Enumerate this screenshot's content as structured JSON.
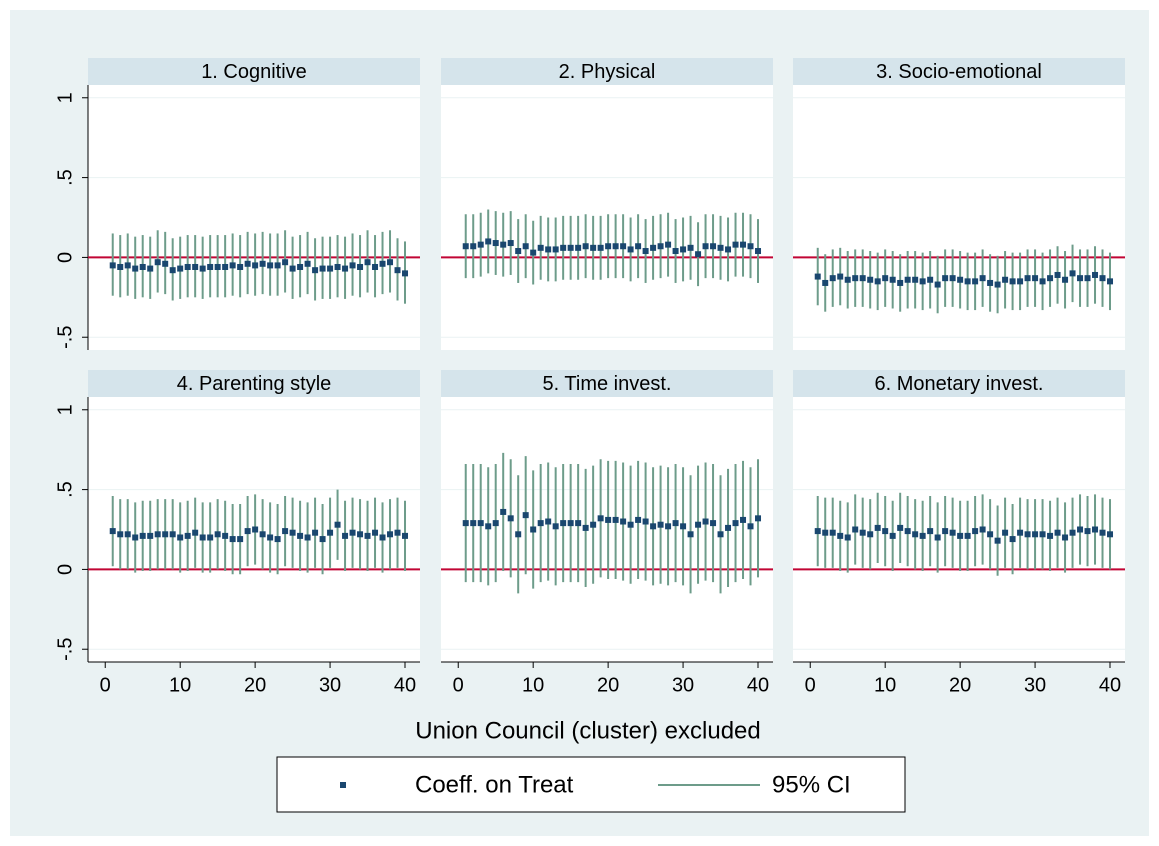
{
  "chart_data": {
    "type": "errorbar",
    "xlabel": "Union Council (cluster) excluded",
    "x": [
      1,
      2,
      3,
      4,
      5,
      6,
      7,
      8,
      9,
      10,
      11,
      12,
      13,
      14,
      15,
      16,
      17,
      18,
      19,
      20,
      21,
      22,
      23,
      24,
      25,
      26,
      27,
      28,
      29,
      30,
      31,
      32,
      33,
      34,
      35,
      36,
      37,
      38,
      39,
      40
    ],
    "xlim": [
      -2.3,
      42
    ],
    "xticks": [
      0,
      10,
      20,
      30,
      40
    ],
    "ylim": [
      -0.58,
      1.08
    ],
    "yticks": [
      {
        "value": -0.5,
        "label": "-.5"
      },
      0,
      {
        "value": 0.5,
        "label": ".5"
      },
      1
    ],
    "grid": true,
    "reference_line": 0,
    "reference_color": "#c10534",
    "series": [
      {
        "name": "Coeff. on Treat",
        "color": "#1a476f"
      },
      {
        "name": "95% CI",
        "color": "#6d9c8a"
      }
    ],
    "panels": [
      {
        "title": "1. Cognitive",
        "values": [
          -0.05,
          -0.06,
          -0.05,
          -0.07,
          -0.06,
          -0.07,
          -0.03,
          -0.04,
          -0.08,
          -0.07,
          -0.06,
          -0.06,
          -0.07,
          -0.06,
          -0.06,
          -0.06,
          -0.05,
          -0.06,
          -0.04,
          -0.05,
          -0.04,
          -0.05,
          -0.05,
          -0.03,
          -0.07,
          -0.06,
          -0.04,
          -0.08,
          -0.07,
          -0.07,
          -0.06,
          -0.07,
          -0.05,
          -0.06,
          -0.03,
          -0.06,
          -0.04,
          -0.03,
          -0.08,
          -0.1
        ],
        "lower": [
          -0.24,
          -0.25,
          -0.24,
          -0.26,
          -0.25,
          -0.26,
          -0.22,
          -0.23,
          -0.27,
          -0.26,
          -0.25,
          -0.25,
          -0.26,
          -0.25,
          -0.25,
          -0.25,
          -0.24,
          -0.25,
          -0.23,
          -0.24,
          -0.23,
          -0.24,
          -0.24,
          -0.22,
          -0.26,
          -0.25,
          -0.23,
          -0.27,
          -0.26,
          -0.26,
          -0.25,
          -0.26,
          -0.24,
          -0.25,
          -0.22,
          -0.25,
          -0.23,
          -0.22,
          -0.27,
          -0.29
        ],
        "upper": [
          0.15,
          0.14,
          0.15,
          0.13,
          0.14,
          0.13,
          0.17,
          0.16,
          0.12,
          0.13,
          0.14,
          0.14,
          0.13,
          0.14,
          0.14,
          0.14,
          0.15,
          0.14,
          0.16,
          0.15,
          0.16,
          0.15,
          0.15,
          0.17,
          0.13,
          0.14,
          0.16,
          0.12,
          0.13,
          0.13,
          0.14,
          0.13,
          0.15,
          0.14,
          0.17,
          0.14,
          0.16,
          0.17,
          0.12,
          0.1
        ]
      },
      {
        "title": "2. Physical",
        "values": [
          0.07,
          0.07,
          0.08,
          0.1,
          0.09,
          0.08,
          0.09,
          0.04,
          0.07,
          0.03,
          0.06,
          0.05,
          0.05,
          0.06,
          0.06,
          0.06,
          0.07,
          0.06,
          0.06,
          0.07,
          0.07,
          0.07,
          0.05,
          0.07,
          0.04,
          0.06,
          0.07,
          0.08,
          0.04,
          0.05,
          0.06,
          0.02,
          0.07,
          0.07,
          0.06,
          0.05,
          0.08,
          0.08,
          0.07,
          0.04
        ],
        "lower": [
          -0.13,
          -0.13,
          -0.12,
          -0.1,
          -0.11,
          -0.12,
          -0.11,
          -0.16,
          -0.13,
          -0.17,
          -0.14,
          -0.15,
          -0.15,
          -0.14,
          -0.14,
          -0.14,
          -0.13,
          -0.14,
          -0.14,
          -0.13,
          -0.13,
          -0.13,
          -0.15,
          -0.13,
          -0.16,
          -0.14,
          -0.13,
          -0.12,
          -0.16,
          -0.15,
          -0.14,
          -0.18,
          -0.13,
          -0.13,
          -0.14,
          -0.15,
          -0.12,
          -0.12,
          -0.13,
          -0.16
        ],
        "upper": [
          0.27,
          0.27,
          0.28,
          0.3,
          0.29,
          0.28,
          0.29,
          0.24,
          0.27,
          0.23,
          0.26,
          0.25,
          0.25,
          0.26,
          0.26,
          0.26,
          0.27,
          0.26,
          0.26,
          0.27,
          0.27,
          0.27,
          0.25,
          0.27,
          0.24,
          0.26,
          0.27,
          0.28,
          0.24,
          0.25,
          0.26,
          0.22,
          0.27,
          0.27,
          0.26,
          0.25,
          0.28,
          0.28,
          0.27,
          0.24
        ]
      },
      {
        "title": "3. Socio-emotional",
        "values": [
          -0.12,
          -0.16,
          -0.13,
          -0.12,
          -0.14,
          -0.13,
          -0.13,
          -0.14,
          -0.15,
          -0.13,
          -0.14,
          -0.16,
          -0.14,
          -0.14,
          -0.15,
          -0.14,
          -0.17,
          -0.13,
          -0.13,
          -0.14,
          -0.15,
          -0.15,
          -0.13,
          -0.16,
          -0.17,
          -0.14,
          -0.15,
          -0.15,
          -0.13,
          -0.13,
          -0.15,
          -0.13,
          -0.11,
          -0.14,
          -0.1,
          -0.13,
          -0.13,
          -0.11,
          -0.13,
          -0.15
        ],
        "lower": [
          -0.3,
          -0.34,
          -0.31,
          -0.3,
          -0.32,
          -0.31,
          -0.31,
          -0.32,
          -0.33,
          -0.31,
          -0.32,
          -0.34,
          -0.32,
          -0.32,
          -0.33,
          -0.32,
          -0.35,
          -0.31,
          -0.31,
          -0.32,
          -0.33,
          -0.33,
          -0.31,
          -0.34,
          -0.35,
          -0.32,
          -0.33,
          -0.33,
          -0.31,
          -0.31,
          -0.33,
          -0.31,
          -0.29,
          -0.32,
          -0.28,
          -0.31,
          -0.31,
          -0.29,
          -0.31,
          -0.33
        ],
        "upper": [
          0.06,
          0.02,
          0.05,
          0.06,
          0.04,
          0.05,
          0.05,
          0.04,
          0.03,
          0.05,
          0.04,
          0.02,
          0.04,
          0.04,
          0.03,
          0.04,
          0.01,
          0.05,
          0.05,
          0.04,
          0.03,
          0.03,
          0.05,
          0.02,
          0.01,
          0.04,
          0.03,
          0.03,
          0.05,
          0.05,
          0.03,
          0.05,
          0.07,
          0.04,
          0.08,
          0.05,
          0.05,
          0.07,
          0.05,
          0.03
        ]
      },
      {
        "title": "4. Parenting style",
        "values": [
          0.24,
          0.22,
          0.22,
          0.2,
          0.21,
          0.21,
          0.22,
          0.22,
          0.22,
          0.2,
          0.21,
          0.23,
          0.2,
          0.2,
          0.22,
          0.21,
          0.19,
          0.19,
          0.24,
          0.25,
          0.22,
          0.2,
          0.19,
          0.24,
          0.23,
          0.21,
          0.2,
          0.23,
          0.19,
          0.23,
          0.28,
          0.21,
          0.23,
          0.22,
          0.21,
          0.23,
          0.2,
          0.22,
          0.23,
          0.21
        ],
        "lower": [
          0.02,
          0,
          0,
          -0.02,
          -0.01,
          -0.01,
          0,
          0,
          0,
          -0.02,
          -0.01,
          0.01,
          -0.02,
          -0.02,
          0,
          -0.01,
          -0.03,
          -0.03,
          0.02,
          0.03,
          0,
          -0.02,
          -0.03,
          0.02,
          0.01,
          -0.01,
          -0.02,
          0.01,
          -0.03,
          0.01,
          0.06,
          -0.01,
          0.01,
          0,
          -0.01,
          0.01,
          -0.02,
          0,
          0.01,
          -0.01
        ],
        "upper": [
          0.46,
          0.44,
          0.44,
          0.42,
          0.43,
          0.43,
          0.44,
          0.44,
          0.44,
          0.42,
          0.43,
          0.45,
          0.42,
          0.42,
          0.44,
          0.43,
          0.41,
          0.41,
          0.46,
          0.47,
          0.44,
          0.42,
          0.41,
          0.46,
          0.45,
          0.43,
          0.42,
          0.45,
          0.41,
          0.45,
          0.5,
          0.43,
          0.45,
          0.44,
          0.43,
          0.45,
          0.42,
          0.44,
          0.45,
          0.43
        ]
      },
      {
        "title": "5. Time invest.",
        "values": [
          0.29,
          0.29,
          0.29,
          0.27,
          0.29,
          0.36,
          0.32,
          0.22,
          0.34,
          0.25,
          0.29,
          0.3,
          0.27,
          0.29,
          0.29,
          0.29,
          0.26,
          0.28,
          0.32,
          0.31,
          0.31,
          0.3,
          0.28,
          0.31,
          0.3,
          0.27,
          0.28,
          0.27,
          0.29,
          0.27,
          0.22,
          0.28,
          0.3,
          0.29,
          0.22,
          0.26,
          0.29,
          0.31,
          0.27,
          0.32
        ],
        "lower": [
          -0.08,
          -0.08,
          -0.08,
          -0.1,
          -0.08,
          -0.01,
          -0.05,
          -0.15,
          -0.03,
          -0.12,
          -0.08,
          -0.07,
          -0.1,
          -0.08,
          -0.08,
          -0.08,
          -0.11,
          -0.09,
          -0.05,
          -0.06,
          -0.06,
          -0.07,
          -0.09,
          -0.06,
          -0.07,
          -0.1,
          -0.09,
          -0.1,
          -0.08,
          -0.1,
          -0.15,
          -0.09,
          -0.07,
          -0.08,
          -0.15,
          -0.11,
          -0.08,
          -0.06,
          -0.1,
          -0.05
        ],
        "upper": [
          0.66,
          0.66,
          0.66,
          0.64,
          0.66,
          0.73,
          0.69,
          0.59,
          0.71,
          0.62,
          0.66,
          0.67,
          0.64,
          0.66,
          0.66,
          0.66,
          0.63,
          0.65,
          0.69,
          0.68,
          0.68,
          0.67,
          0.65,
          0.68,
          0.67,
          0.64,
          0.65,
          0.64,
          0.66,
          0.64,
          0.59,
          0.65,
          0.67,
          0.66,
          0.59,
          0.63,
          0.66,
          0.68,
          0.64,
          0.69
        ]
      },
      {
        "title": "6. Monetary invest.",
        "values": [
          0.24,
          0.23,
          0.23,
          0.21,
          0.2,
          0.25,
          0.23,
          0.22,
          0.26,
          0.24,
          0.21,
          0.26,
          0.24,
          0.22,
          0.21,
          0.24,
          0.2,
          0.24,
          0.23,
          0.21,
          0.21,
          0.24,
          0.25,
          0.22,
          0.18,
          0.23,
          0.19,
          0.23,
          0.22,
          0.22,
          0.22,
          0.21,
          0.23,
          0.2,
          0.23,
          0.25,
          0.24,
          0.25,
          0.23,
          0.22
        ],
        "lower": [
          0.02,
          0.01,
          0.01,
          -0.01,
          -0.02,
          0.03,
          0.01,
          0,
          0.04,
          0.02,
          -0.01,
          0.04,
          0.02,
          0,
          -0.01,
          0.02,
          -0.02,
          0.02,
          0.01,
          -0.01,
          -0.01,
          0.02,
          0.03,
          0,
          -0.04,
          0.01,
          -0.03,
          0.01,
          0,
          0,
          0,
          -0.01,
          0.01,
          -0.02,
          0.01,
          0.03,
          0.02,
          0.03,
          0.01,
          0
        ],
        "upper": [
          0.46,
          0.45,
          0.45,
          0.43,
          0.42,
          0.47,
          0.45,
          0.44,
          0.48,
          0.46,
          0.43,
          0.48,
          0.46,
          0.44,
          0.43,
          0.46,
          0.42,
          0.46,
          0.45,
          0.43,
          0.43,
          0.46,
          0.47,
          0.44,
          0.4,
          0.45,
          0.41,
          0.45,
          0.44,
          0.44,
          0.44,
          0.43,
          0.45,
          0.42,
          0.45,
          0.47,
          0.46,
          0.47,
          0.45,
          0.44
        ]
      }
    ]
  }
}
